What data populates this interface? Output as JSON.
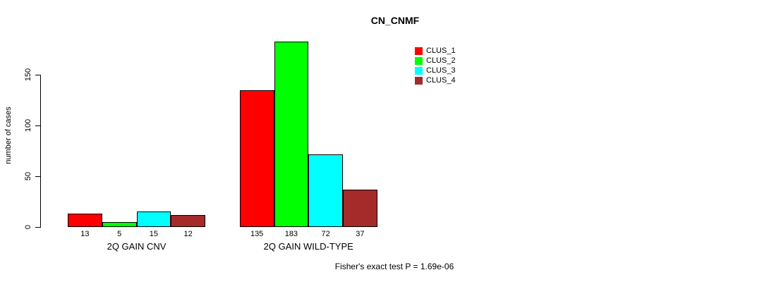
{
  "chart_data": {
    "type": "bar",
    "title": "CN_CNMF",
    "ylabel": "number of cases",
    "xlabel": "",
    "yticks": [
      0,
      50,
      100,
      150
    ],
    "ylim": [
      0,
      150
    ],
    "grid": false,
    "legend_position": "top-right",
    "categories": [
      "2Q GAIN CNV",
      "2Q GAIN WILD-TYPE"
    ],
    "series": [
      {
        "name": "CLUS_1",
        "color": "#ff0000",
        "values": [
          13,
          135
        ]
      },
      {
        "name": "CLUS_2",
        "color": "#00ff00",
        "values": [
          5,
          183
        ]
      },
      {
        "name": "CLUS_3",
        "color": "#00ffff",
        "values": [
          15,
          72
        ]
      },
      {
        "name": "CLUS_4",
        "color": "#a52a2a",
        "values": [
          12,
          37
        ]
      }
    ],
    "bar_value_labels": [
      [
        "13",
        "5",
        "15",
        "12"
      ],
      [
        "135",
        "183",
        "72",
        "37"
      ]
    ],
    "footer": "Fisher's exact test P = 1.69e-06",
    "axis_color": "#000000",
    "text_color": "#000000",
    "background_color": "#ffffff"
  }
}
